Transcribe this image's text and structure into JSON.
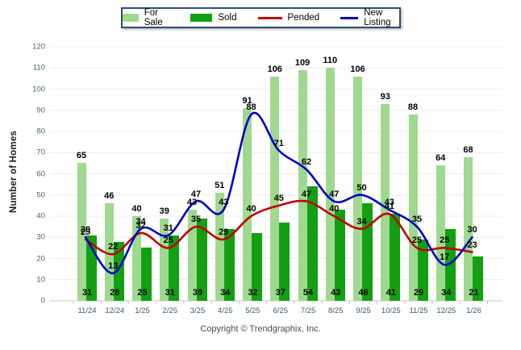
{
  "chart_data": {
    "type": "bar",
    "title": "",
    "xlabel": "",
    "ylabel": "Number of Homes",
    "ylim": [
      0,
      120
    ],
    "ytick_step": 10,
    "grid": true,
    "legend_position": "top-center",
    "categories": [
      "11/24",
      "12/24",
      "1/25",
      "2/25",
      "3/25",
      "4/25",
      "5/25",
      "6/25",
      "7/25",
      "8/25",
      "9/25",
      "10/25",
      "11/25",
      "12/25",
      "1/26"
    ],
    "series": [
      {
        "name": "For Sale",
        "kind": "bar",
        "color": "#9FD98F",
        "values": [
          65,
          46,
          40,
          39,
          43,
          51,
          91,
          106,
          109,
          110,
          106,
          93,
          88,
          64,
          68
        ]
      },
      {
        "name": "Sold",
        "kind": "bar",
        "color": "#12A012",
        "values": [
          31,
          28,
          25,
          31,
          39,
          34,
          32,
          37,
          54,
          43,
          46,
          41,
          29,
          34,
          21
        ]
      },
      {
        "name": "Pended",
        "kind": "line",
        "color": "#C00000",
        "values": [
          29,
          22,
          32,
          25,
          35,
          29,
          40,
          45,
          47,
          40,
          34,
          41,
          25,
          25,
          23
        ]
      },
      {
        "name": "New Listing",
        "kind": "line",
        "color": "#0000CC",
        "values": [
          30,
          13,
          34,
          31,
          47,
          43,
          88,
          71,
          62,
          47,
          50,
          43,
          35,
          17,
          30
        ]
      }
    ]
  },
  "footer": {
    "copyright": "Copyright © Trendgraphix, Inc."
  },
  "colors": {
    "grid": "#ECECEC",
    "baseline": "#C8C8C8",
    "axis_text": "#44607A",
    "legend_border": "#2E4D77"
  }
}
